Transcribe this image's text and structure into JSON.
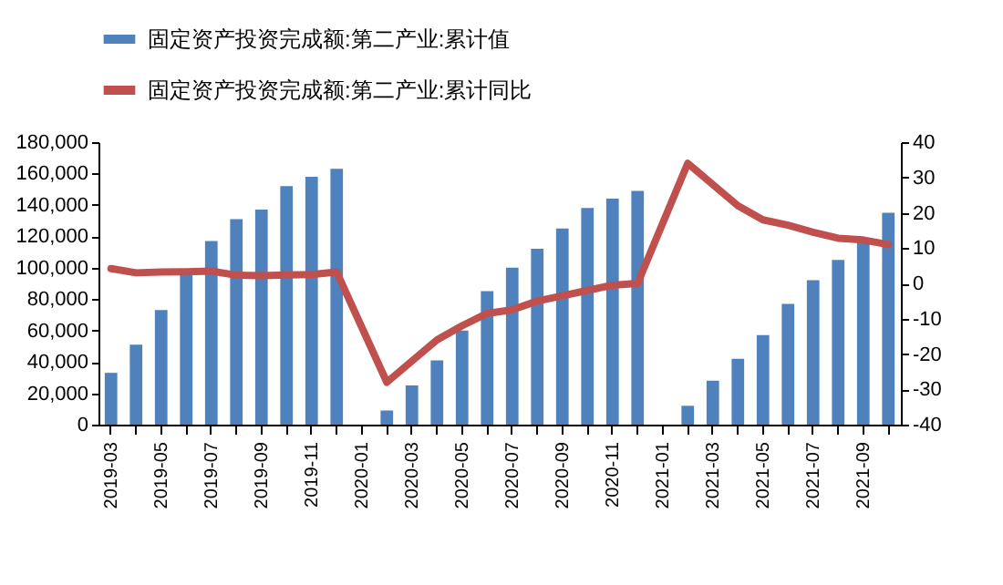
{
  "chart_data": {
    "type": "bar",
    "categories": [
      "2019-03",
      null,
      "2019-05",
      null,
      "2019-07",
      null,
      "2019-09",
      null,
      "2019-11",
      null,
      "2020-01",
      null,
      "2020-03",
      null,
      "2020-05",
      null,
      "2020-07",
      null,
      "2020-09",
      null,
      "2020-11",
      null,
      "2021-01",
      null,
      "2021-03",
      null,
      "2021-05",
      null,
      "2021-07",
      null,
      "2021-09",
      null
    ],
    "series": [
      {
        "name": "固定资产投资完成额:第二产业:累计值",
        "color": "#4f81bd",
        "values": [
          33000,
          51000,
          73000,
          98000,
          117000,
          131000,
          137000,
          152000,
          158000,
          163000,
          null,
          9000,
          25000,
          41000,
          60000,
          85000,
          100000,
          112000,
          125000,
          138000,
          144000,
          149000,
          null,
          12000,
          28000,
          42000,
          57000,
          77000,
          92000,
          105000,
          119000,
          135000
        ]
      },
      {
        "name": "固定资产投资完成额:第二产业:累计同比",
        "type": "line",
        "axis": "y2",
        "color": "#c0504d",
        "values": [
          4.2,
          3,
          3.2,
          3.3,
          3.5,
          2.3,
          2.2,
          2.4,
          2.5,
          3.2,
          null,
          -28,
          -22,
          -16,
          -12,
          -8.5,
          -7.5,
          -5,
          -3.5,
          -2,
          -0.5,
          0,
          null,
          34,
          28,
          22,
          18,
          16.5,
          14.5,
          12.8,
          12.3,
          11
        ]
      }
    ],
    "ylim": [
      0,
      180000
    ],
    "yticks": [
      0,
      {
        "value": 20000,
        "label": "20,000"
      },
      {
        "value": 40000,
        "label": "40,000"
      },
      {
        "value": 60000,
        "label": "60,000"
      },
      {
        "value": 80000,
        "label": "80,000"
      },
      {
        "value": 100000,
        "label": "100,000"
      },
      {
        "value": 120000,
        "label": "120,000"
      },
      {
        "value": 140000,
        "label": "140,000"
      },
      {
        "value": 160000,
        "label": "160,000"
      },
      {
        "value": 180000,
        "label": "180,000"
      }
    ],
    "y2lim": [
      -40,
      40
    ],
    "y2ticks": [
      -40,
      -30,
      -20,
      -10,
      0,
      10,
      20,
      30,
      40
    ],
    "grid": false,
    "legend": "top",
    "line_style": "solid",
    "marker": "none"
  }
}
